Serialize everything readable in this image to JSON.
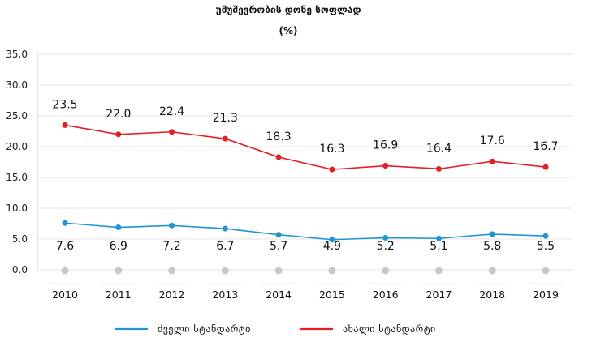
{
  "chart_data": {
    "type": "line",
    "title": "უმუშევრობის დონე სოფლად",
    "subtitle": "(%)",
    "categories": [
      "2010",
      "2011",
      "2012",
      "2013",
      "2014",
      "2015",
      "2016",
      "2017",
      "2018",
      "2019"
    ],
    "ylim": [
      0,
      35
    ],
    "yticks": [
      "0.0",
      "5.0",
      "10.0",
      "15.0",
      "20.0",
      "25.0",
      "30.0",
      "35.0"
    ],
    "grid": true,
    "legend_position": "bottom",
    "series": [
      {
        "name": "ძველი სტანდარტი",
        "color": "#1f96d3",
        "values": [
          7.6,
          6.9,
          7.2,
          6.7,
          5.7,
          4.9,
          5.2,
          5.1,
          5.8,
          5.5
        ],
        "labels": [
          "7.6",
          "6.9",
          "7.2",
          "6.7",
          "5.7",
          "4.9",
          "5.2",
          "5.1",
          "5.8",
          "5.5"
        ]
      },
      {
        "name": "ახალი სტანდარტი",
        "color": "#e31e24",
        "values": [
          23.5,
          22.0,
          22.4,
          21.3,
          18.3,
          16.3,
          16.9,
          16.4,
          17.6,
          16.7
        ],
        "labels": [
          "23.5",
          "22.0",
          "22.4",
          "21.3",
          "18.3",
          "16.3",
          "16.9",
          "16.4",
          "17.6",
          "16.7"
        ]
      }
    ],
    "axis_marker_color": "#c8c8c8"
  }
}
